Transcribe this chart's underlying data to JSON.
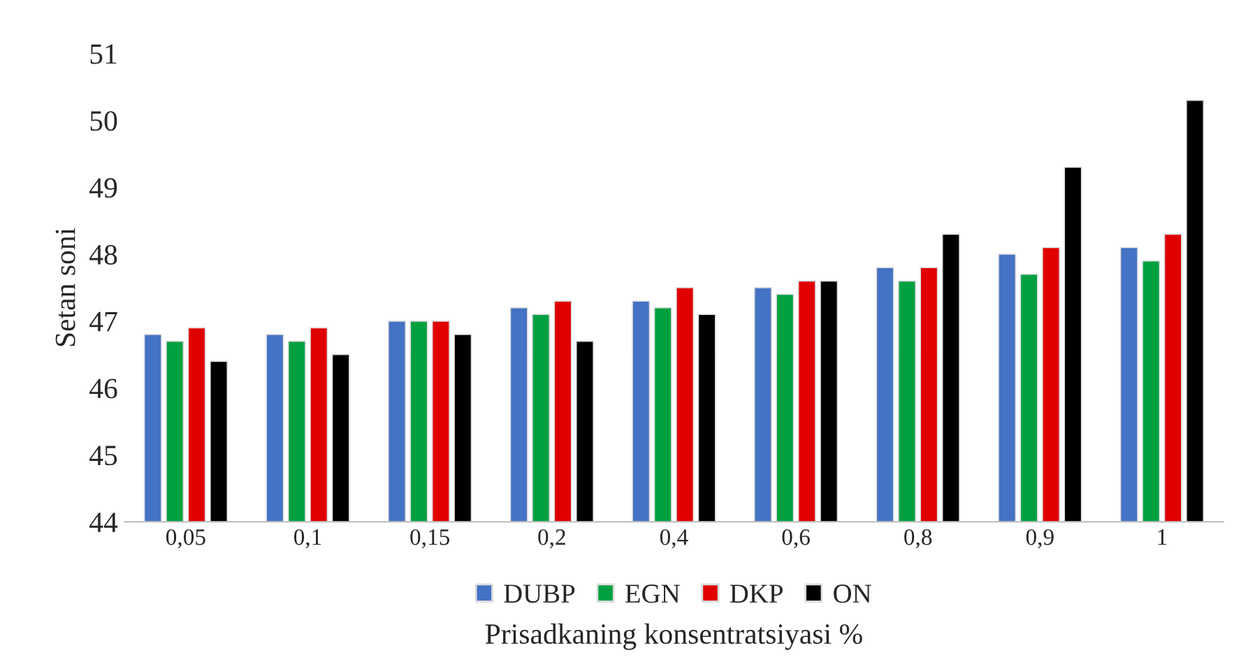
{
  "chart_data": {
    "type": "bar",
    "xlabel": "Prisadkaning konsentratsiyasi %",
    "ylabel": "Setan soni",
    "categories": [
      "0,05",
      "0,1",
      "0,15",
      "0,2",
      "0,4",
      "0,6",
      "0,8",
      "0,9",
      "1"
    ],
    "series": [
      {
        "name": "DUBP",
        "color": "#4472c4",
        "values": [
          46.8,
          46.8,
          47.0,
          47.2,
          47.3,
          47.5,
          47.8,
          48.0,
          48.1
        ]
      },
      {
        "name": "EGN",
        "color": "#00a040",
        "values": [
          46.7,
          46.7,
          47.0,
          47.1,
          47.2,
          47.4,
          47.6,
          47.7,
          47.9
        ]
      },
      {
        "name": "DKP",
        "color": "#e00000",
        "values": [
          46.9,
          46.9,
          47.0,
          47.3,
          47.5,
          47.6,
          47.8,
          48.1,
          48.3
        ]
      },
      {
        "name": "ON",
        "color": "#000000",
        "values": [
          46.4,
          46.5,
          46.8,
          46.7,
          47.1,
          47.6,
          48.3,
          49.3,
          50.3
        ]
      }
    ],
    "ylim": [
      44,
      51
    ],
    "yticks": [
      44,
      45,
      46,
      47,
      48,
      49,
      50,
      51
    ],
    "grid": false,
    "legend": "bottom"
  }
}
